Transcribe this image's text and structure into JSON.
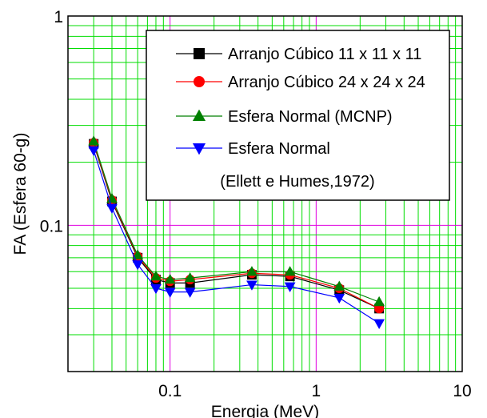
{
  "chart_data": {
    "type": "line",
    "xscale": "log",
    "yscale": "log",
    "xlim": [
      0.02,
      10
    ],
    "ylim": [
      0.02,
      1
    ],
    "xlabel": "Energia (MeV)",
    "ylabel": "FA (Esfera 60-g)",
    "x_ticks": [
      {
        "value": 0.1,
        "label": "0.1"
      },
      {
        "value": 1,
        "label": "1"
      },
      {
        "value": 10,
        "label": "10"
      }
    ],
    "y_ticks": [
      {
        "value": 0.1,
        "label": "0.1"
      },
      {
        "value": 1,
        "label": "1"
      }
    ],
    "grid": true,
    "legend_position": "top-right",
    "legend_note": "(Ellett e Humes,1972)",
    "colors": {
      "major_grid": "#e000e0",
      "minor_grid": "#00dd00",
      "frame": "#000000"
    },
    "x": [
      0.03,
      0.04,
      0.06,
      0.08,
      0.1,
      0.137,
      0.363,
      0.662,
      1.44,
      2.7
    ],
    "series": [
      {
        "name": "Arranjo Cúbico 11 x 11 x 11",
        "color": "#000000",
        "marker": "square",
        "values": [
          0.245,
          0.13,
          0.07,
          0.055,
          0.053,
          0.053,
          0.058,
          0.057,
          0.049,
          0.04
        ]
      },
      {
        "name": "Arranjo Cúbico 24 x 24 x 24",
        "color": "#ff0000",
        "marker": "circle",
        "values": [
          0.248,
          0.132,
          0.071,
          0.056,
          0.054,
          0.055,
          0.059,
          0.058,
          0.05,
          0.04
        ]
      },
      {
        "name": "Esfera Normal (MCNP)",
        "color": "#008000",
        "marker": "triangle-up",
        "values": [
          0.252,
          0.134,
          0.072,
          0.057,
          0.055,
          0.056,
          0.06,
          0.06,
          0.051,
          0.043
        ]
      },
      {
        "name": "Esfera Normal",
        "color": "#0000ff",
        "marker": "triangle-down",
        "values": [
          0.228,
          0.121,
          0.065,
          0.05,
          0.048,
          0.048,
          0.052,
          0.051,
          0.045,
          0.034
        ]
      }
    ]
  }
}
